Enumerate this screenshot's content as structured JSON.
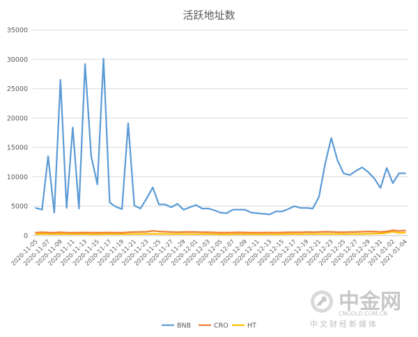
{
  "chart_data": {
    "type": "line",
    "title": "活跃地址数",
    "xlabel": "",
    "ylabel": "",
    "ylim": [
      0,
      35000
    ],
    "yticks": [
      0,
      5000,
      10000,
      15000,
      20000,
      25000,
      30000,
      35000
    ],
    "ytick_labels": [
      "0",
      "5000",
      "10000",
      "15000",
      "20000",
      "25000",
      "30000",
      "35000"
    ],
    "grid": true,
    "legend_position": "bottom",
    "x": [
      "2020-11-05",
      "2020-11-06",
      "2020-11-07",
      "2020-11-08",
      "2020-11-09",
      "2020-11-10",
      "2020-11-11",
      "2020-11-12",
      "2020-11-13",
      "2020-11-14",
      "2020-11-15",
      "2020-11-16",
      "2020-11-17",
      "2020-11-18",
      "2020-11-19",
      "2020-11-20",
      "2020-11-21",
      "2020-11-22",
      "2020-11-23",
      "2020-11-24",
      "2020-11-25",
      "2020-11-26",
      "2020-11-27",
      "2020-11-28",
      "2020-11-29",
      "2020-11-30",
      "2020-12-01",
      "2020-12-02",
      "2020-12-03",
      "2020-12-04",
      "2020-12-05",
      "2020-12-06",
      "2020-12-07",
      "2020-12-08",
      "2020-12-09",
      "2020-12-10",
      "2020-12-11",
      "2020-12-12",
      "2020-12-13",
      "2020-12-14",
      "2020-12-15",
      "2020-12-16",
      "2020-12-17",
      "2020-12-18",
      "2020-12-19",
      "2020-12-20",
      "2020-12-21",
      "2020-12-22",
      "2020-12-23",
      "2020-12-24",
      "2020-12-25",
      "2020-12-26",
      "2020-12-27",
      "2020-12-28",
      "2020-12-29",
      "2020-12-30",
      "2020-12-31",
      "2021-01-01",
      "2021-01-02",
      "2021-01-03",
      "2021-01-04"
    ],
    "xtick_labels": [
      "2020-11-05",
      "2020-11-07",
      "2020-11-09",
      "2020-11-11",
      "2020-11-13",
      "2020-11-15",
      "2020-11-17",
      "2020-11-19",
      "2020-11-21",
      "2020-11-23",
      "2020-11-25",
      "2020-11-27",
      "2020-11-29",
      "2020-12-01",
      "2020-12-03",
      "2020-12-05",
      "2020-12-07",
      "2020-12-09",
      "2020-12-11",
      "2020-12-13",
      "2020-12-15",
      "2020-12-17",
      "2020-12-19",
      "2020-12-21",
      "2020-12-23",
      "2020-12-25",
      "2020-12-27",
      "2020-12-29",
      "2020-12-31",
      "2021-01-02",
      "2021-01-04"
    ],
    "series": [
      {
        "name": "BNB",
        "color": "#5b9bd5",
        "values": [
          4700,
          4400,
          13500,
          3900,
          26500,
          4700,
          18400,
          4600,
          29200,
          13500,
          8700,
          30100,
          5600,
          4900,
          4500,
          19100,
          5100,
          4600,
          6300,
          8200,
          5300,
          5300,
          4800,
          5400,
          4400,
          4800,
          5200,
          4600,
          4600,
          4300,
          3900,
          3800,
          4400,
          4400,
          4400,
          3900,
          3800,
          3700,
          3600,
          4100,
          4100,
          4500,
          5000,
          4700,
          4700,
          4600,
          6600,
          12200,
          16600,
          12800,
          10600,
          10300,
          11000,
          11600,
          10800,
          9700,
          8100,
          11500,
          8900,
          10600,
          10600
        ]
      },
      {
        "name": "CRO",
        "color": "#ed7d31",
        "values": [
          500,
          550,
          520,
          480,
          550,
          500,
          480,
          500,
          520,
          500,
          480,
          500,
          520,
          500,
          480,
          560,
          600,
          620,
          650,
          800,
          700,
          650,
          600,
          580,
          600,
          620,
          600,
          580,
          550,
          530,
          500,
          500,
          520,
          540,
          520,
          500,
          500,
          510,
          520,
          500,
          520,
          560,
          560,
          560,
          600,
          580,
          600,
          650,
          620,
          580,
          560,
          600,
          620,
          650,
          700,
          680,
          620,
          700,
          900,
          780,
          850
        ]
      },
      {
        "name": "HT",
        "color": "#ffc000",
        "values": [
          250,
          280,
          260,
          240,
          260,
          250,
          240,
          260,
          250,
          240,
          230,
          250,
          260,
          250,
          240,
          250,
          260,
          270,
          280,
          300,
          280,
          270,
          260,
          260,
          270,
          260,
          250,
          260,
          250,
          240,
          230,
          230,
          240,
          240,
          250,
          240,
          230,
          240,
          240,
          230,
          240,
          260,
          250,
          250,
          260,
          260,
          270,
          280,
          270,
          260,
          250,
          260,
          270,
          280,
          300,
          320,
          350,
          450,
          650,
          450,
          500
        ]
      }
    ]
  },
  "watermark": {
    "brand": "中金网",
    "domain": "CNGOLD.COM.CN",
    "caption": "中文财经新媒体",
    "color": "#c0c0c0"
  }
}
